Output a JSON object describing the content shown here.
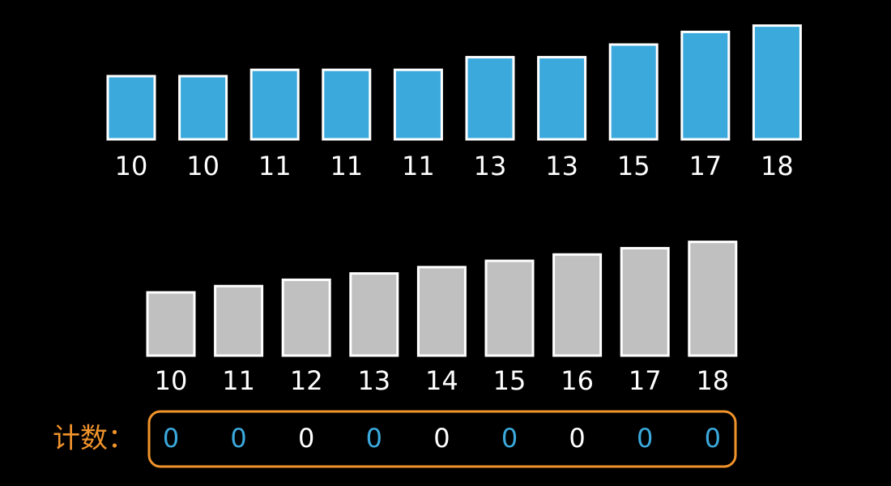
{
  "input": {
    "values": [
      10,
      10,
      11,
      11,
      11,
      13,
      13,
      15,
      17,
      18
    ],
    "color": "#3ba9dc"
  },
  "keys": {
    "values": [
      10,
      11,
      12,
      13,
      14,
      15,
      16,
      17,
      18
    ],
    "color": "#c0c0c0"
  },
  "count": {
    "label": "计数：",
    "label_color": "#f0932b",
    "values": [
      0,
      0,
      0,
      0,
      0,
      0,
      0,
      0,
      0
    ],
    "colors": [
      "#3ba9dc",
      "#3ba9dc",
      "#ffffff",
      "#3ba9dc",
      "#ffffff",
      "#3ba9dc",
      "#ffffff",
      "#3ba9dc",
      "#3ba9dc"
    ]
  }
}
